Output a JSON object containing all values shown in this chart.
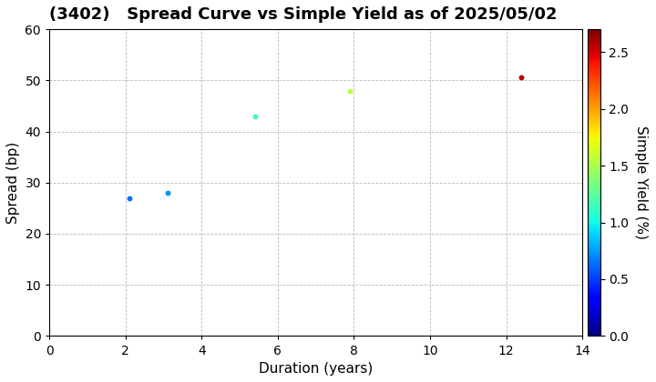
{
  "title": "(3402)   Spread Curve vs Simple Yield as of 2025/05/02",
  "xlabel": "Duration (years)",
  "ylabel": "Spread (bp)",
  "colorbar_label": "Simple Yield (%)",
  "xlim": [
    0,
    14
  ],
  "ylim": [
    0,
    60
  ],
  "xticks": [
    0,
    2,
    4,
    6,
    8,
    10,
    12,
    14
  ],
  "yticks": [
    0,
    10,
    20,
    30,
    40,
    50,
    60
  ],
  "colorbar_vmin": 0.0,
  "colorbar_vmax": 2.7,
  "colorbar_ticks": [
    0.0,
    0.5,
    1.0,
    1.5,
    2.0,
    2.5
  ],
  "points": [
    {
      "duration": 2.1,
      "spread": 27,
      "simple_yield": 0.65
    },
    {
      "duration": 3.1,
      "spread": 28,
      "simple_yield": 0.72
    },
    {
      "duration": 5.4,
      "spread": 43,
      "simple_yield": 1.15
    },
    {
      "duration": 7.9,
      "spread": 48,
      "simple_yield": 1.55
    },
    {
      "duration": 12.4,
      "spread": 50.5,
      "simple_yield": 2.55
    }
  ],
  "marker_size": 18,
  "background_color": "#ffffff",
  "grid_color": "#bbbbbb",
  "title_fontsize": 13,
  "axis_fontsize": 11,
  "tick_fontsize": 10
}
